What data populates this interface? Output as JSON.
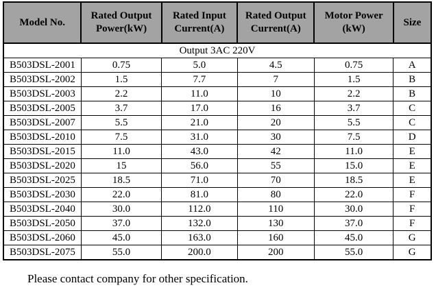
{
  "table": {
    "headers": [
      "Model No.",
      "Rated Output Power(kW)",
      "Rated Input Current(A)",
      "Rated Output Current(A)",
      "Motor Power (kW)",
      "Size"
    ],
    "group_row": "Output 3AC 220V",
    "rows": [
      [
        "B503DSL-2001",
        "0.75",
        "5.0",
        "4.5",
        "0.75",
        "A"
      ],
      [
        "B503DSL-2002",
        "1.5",
        "7.7",
        "7",
        "1.5",
        "B"
      ],
      [
        "B503DSL-2003",
        "2.2",
        "11.0",
        "10",
        "2.2",
        "B"
      ],
      [
        "B503DSL-2005",
        "3.7",
        "17.0",
        "16",
        "3.7",
        "C"
      ],
      [
        "B503DSL-2007",
        "5.5",
        "21.0",
        "20",
        "5.5",
        "C"
      ],
      [
        "B503DSL-2010",
        "7.5",
        "31.0",
        "30",
        "7.5",
        "D"
      ],
      [
        "B503DSL-2015",
        "11.0",
        "43.0",
        "42",
        "11.0",
        "E"
      ],
      [
        "B503DSL-2020",
        "15",
        "56.0",
        "55",
        "15.0",
        "E"
      ],
      [
        "B503DSL-2025",
        "18.5",
        "71.0",
        "70",
        "18.5",
        "E"
      ],
      [
        "B503DSL-2030",
        "22.0",
        "81.0",
        "80",
        "22.0",
        "F"
      ],
      [
        "B503DSL-2040",
        "30.0",
        "112.0",
        "110",
        "30.0",
        "F"
      ],
      [
        "B503DSL-2050",
        "37.0",
        "132.0",
        "130",
        "37.0",
        "F"
      ],
      [
        "B503DSL-2060",
        "45.0",
        "163.0",
        "160",
        "45.0",
        "G"
      ],
      [
        "B503DSL-2075",
        "55.0",
        "200.0",
        "200",
        "55.0",
        "G"
      ]
    ]
  },
  "footer": {
    "note": "Please contact company for other specification."
  },
  "colors": {
    "header_bg": "#a3a3a3",
    "border": "#000000",
    "text": "#000000",
    "background": "#ffffff"
  }
}
